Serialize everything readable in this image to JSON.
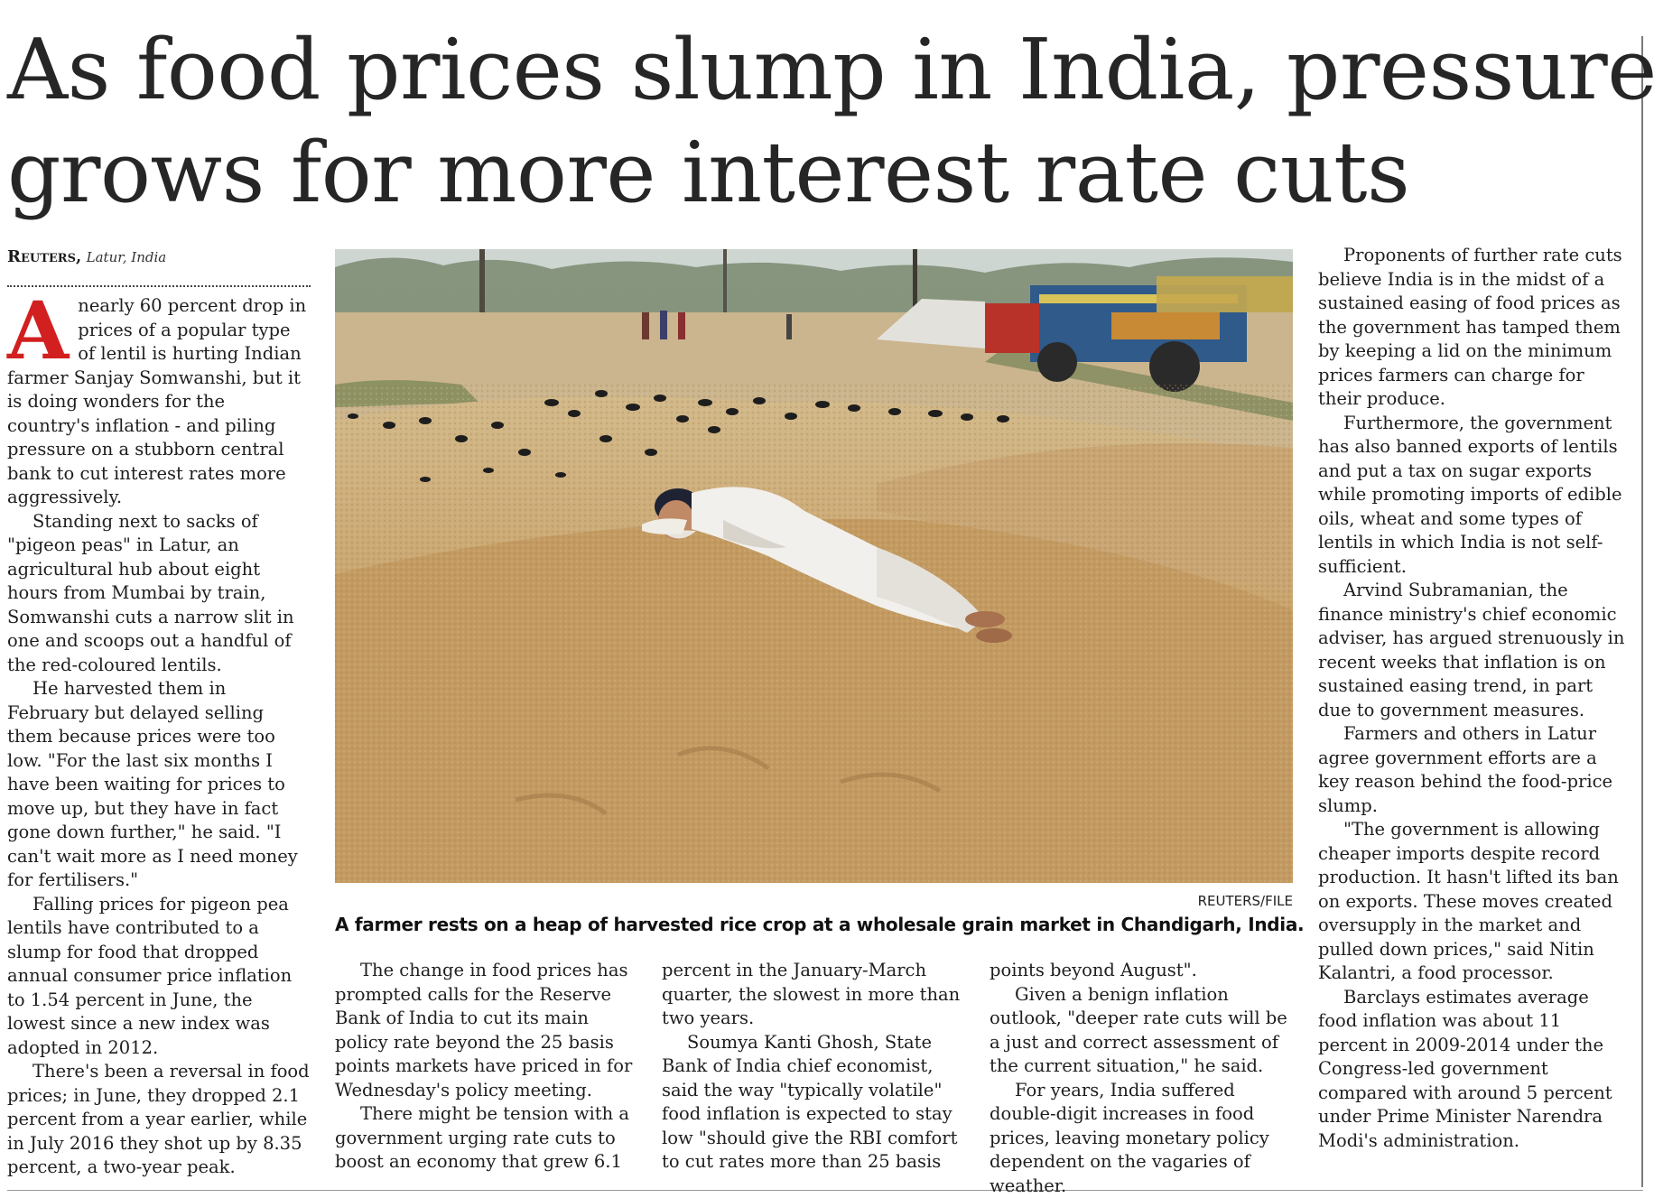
{
  "headline": {
    "line1": "As food prices slump in India, pressure",
    "line2": "grows for more interest rate cuts"
  },
  "byline": {
    "agency": "Reuters,",
    "place": "Latur, India"
  },
  "photo": {
    "credit": "REUTERS/FILE",
    "caption": "A farmer rests on a heap of harvested rice crop at a wholesale grain market in Chandigarh, India."
  },
  "article": {
    "dropcap": "A",
    "col1": [
      "nearly 60 percent drop in prices of a popular type of lentil is hurting Indian farmer Sanjay Somwanshi, but it is doing wonders for the country's inflation - and piling pressure on a stubborn central bank to cut interest rates more aggressively.",
      "Standing next to sacks of \"pigeon peas\" in Latur, an agricultural hub about eight hours from Mumbai by train, Somwanshi cuts a narrow slit in one and scoops out a handful of the red-coloured lentils.",
      "He harvested them in February but delayed selling them because prices were too low. \"For the last six months I have been waiting for prices to move up, but they have in fact gone down further,\" he said. \"I can't wait more as I need money for fertilisers.\"",
      "Falling prices for pigeon pea lentils have contributed to a slump for food that dropped annual consumer price inflation to 1.54 percent in June, the lowest since a new index was adopted in 2012.",
      "There's been a reversal in food prices; in June, they dropped 2.1 percent from a year earlier, while in July 2016 they shot up by 8.35 percent, a two-year peak."
    ],
    "col2": [
      "The change in food prices has prompted calls for the Reserve Bank of India to cut its main policy rate beyond the 25 basis points markets have priced in for Wednesday's policy meeting.",
      "There might be tension with a government urging rate cuts to boost an economy that grew 6.1"
    ],
    "col3_cont": "percent in the January-March quarter, the slowest in more than two years.",
    "col3": [
      "Soumya Kanti Ghosh, State Bank of India chief economist, said the way \"typically volatile\" food inflation is expected to stay low \"should give the RBI comfort to cut rates more than 25 basis"
    ],
    "col4_cont": "points beyond August\".",
    "col4": [
      "Given a benign inflation outlook, \"deeper rate cuts will be a just and correct assessment of the current situation,\" he said.",
      "For years, India suffered double-digit increases in food prices, leaving monetary policy dependent on the vagaries of weather."
    ],
    "col5": [
      "Proponents of further rate cuts believe India is in the midst of a sustained easing of food prices as the government has tamped them by keeping a lid on the minimum prices farmers can charge for their produce.",
      "Furthermore, the government has also banned exports of lentils and put a tax on sugar exports while promoting imports of edible oils, wheat and some types of lentils in which India is not self-sufficient.",
      "Arvind Subramanian, the finance ministry's chief economic adviser, has argued strenuously in recent weeks that inflation is on sustained easing trend, in part due to government measures.",
      "Farmers and others in Latur agree government efforts are a key reason behind the food-price slump.",
      "\"The government is allowing cheaper imports despite record production. It hasn't lifted its ban on exports. These moves created oversupply in the market and pulled down prices,\" said Nitin Kalantri, a food processor.",
      "Barclays estimates average food inflation was about 11 percent in 2009-2014 under the Congress-led government compared with around 5 percent under Prime Minister Narendra Modi's administration."
    ]
  }
}
